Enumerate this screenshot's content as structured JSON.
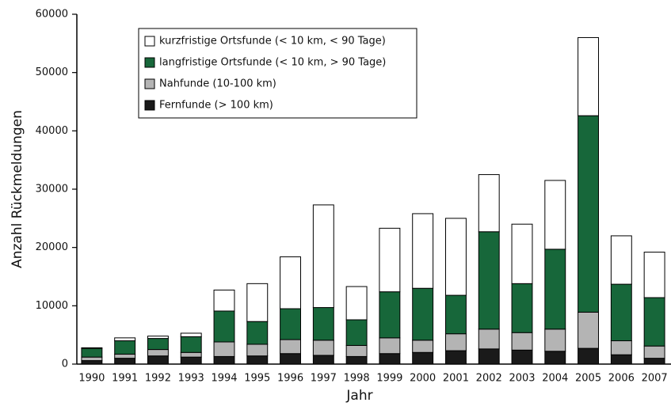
{
  "chart_data": {
    "type": "stacked_bar",
    "x_label": "Jahr",
    "y_label": "Anzahl Rückmeldungen",
    "categories": [
      "1990",
      "1991",
      "1992",
      "1993",
      "1994",
      "1995",
      "1996",
      "1997",
      "1998",
      "1999",
      "2000",
      "2001",
      "2002",
      "2003",
      "2004",
      "2005",
      "2006",
      "2007"
    ],
    "series": [
      {
        "name": "kurzfristige Ortsfunde (< 10 km, < 90 Tage)",
        "color": "#ffffff",
        "values": [
          100,
          500,
          400,
          600,
          3600,
          6500,
          8900,
          17600,
          5700,
          10900,
          12800,
          13200,
          9800,
          10200,
          11800,
          13400,
          8300,
          7800
        ]
      },
      {
        "name": "langfristige Ortsfunde (< 10 km, > 90 Tage)",
        "color": "#17673a",
        "values": [
          1500,
          2300,
          1900,
          2700,
          5300,
          3900,
          5300,
          5600,
          4400,
          7900,
          8900,
          6600,
          16700,
          8400,
          13700,
          33700,
          9700,
          8300
        ]
      },
      {
        "name": "Nahfunde (10-100 km)",
        "color": "#b4b4b4",
        "values": [
          600,
          700,
          1100,
          800,
          2500,
          2000,
          2400,
          2600,
          1900,
          2700,
          2100,
          2900,
          3400,
          3000,
          3800,
          6200,
          2400,
          2100
        ]
      },
      {
        "name": "Fernfunde (> 100 km)",
        "color": "#1a1a1a",
        "values": [
          600,
          1000,
          1400,
          1200,
          1300,
          1400,
          1800,
          1500,
          1300,
          1800,
          2000,
          2300,
          2600,
          2400,
          2200,
          2700,
          1600,
          1000
        ]
      }
    ],
    "ylim": [
      0,
      60000
    ],
    "yticks": [
      0,
      10000,
      20000,
      30000,
      40000,
      50000,
      60000
    ],
    "grid": false
  }
}
